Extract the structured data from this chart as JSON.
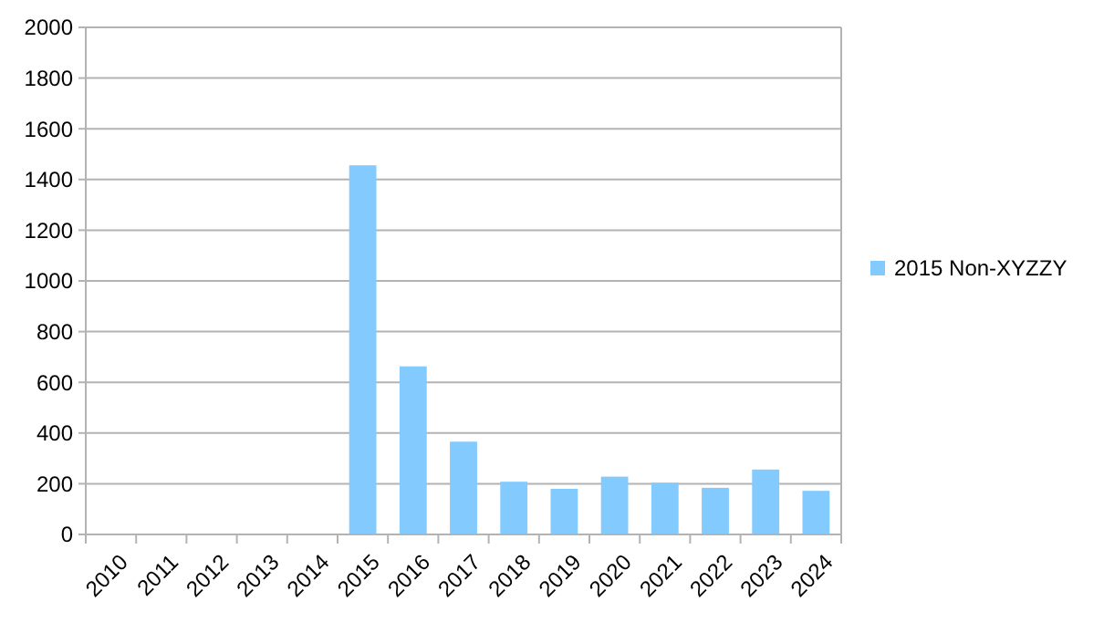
{
  "chart_data": {
    "type": "bar",
    "categories": [
      "2010",
      "2011",
      "2012",
      "2013",
      "2014",
      "2015",
      "2016",
      "2017",
      "2018",
      "2019",
      "2020",
      "2021",
      "2022",
      "2023",
      "2024"
    ],
    "series": [
      {
        "name": "2015 Non-XYZZY",
        "color": "#83caff",
        "values": [
          null,
          null,
          null,
          null,
          null,
          1456,
          663,
          366,
          208,
          180,
          228,
          204,
          184,
          256,
          172
        ]
      }
    ],
    "ylim": [
      0,
      2000
    ],
    "yticks": [
      0,
      200,
      400,
      600,
      800,
      1000,
      1200,
      1400,
      1600,
      1800,
      2000
    ],
    "grid": "y",
    "legend": "right"
  }
}
